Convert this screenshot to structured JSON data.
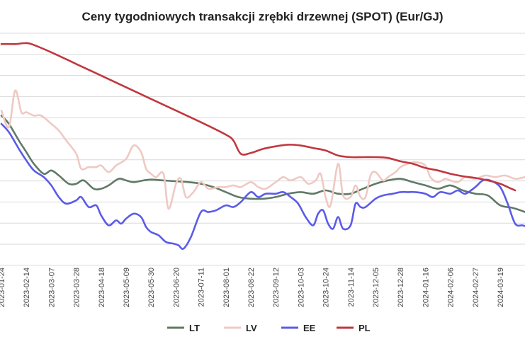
{
  "chart_data": {
    "type": "line",
    "title": "Ceny tygodniowych transakcji zrębki drzewnej (SPOT) (Eur/GJ)",
    "xlabel": "",
    "ylabel": "",
    "grid": true,
    "legend_position": "bottom",
    "x_tick_labels": [
      "2023-01-24",
      "2023-02-14",
      "2023-03-07",
      "2023-03-28",
      "2023-04-18",
      "2023-05-09",
      "2023-05-30",
      "2023-06-20",
      "2023-07-11",
      "2023-08-01",
      "2023-08-22",
      "2023-09-12",
      "2023-10-03",
      "2023-10-24",
      "2023-11-14",
      "2023-12-05",
      "2023-12-28",
      "2024-01-16",
      "2024-02-06",
      "2024-02-27",
      "2024-03-19"
    ],
    "y_gridlines": 12,
    "series": [
      {
        "name": "LT",
        "color": "#5f7a66",
        "points": [
          [
            0,
            6.5
          ],
          [
            0.3,
            6.0
          ],
          [
            0.7,
            5.0
          ],
          [
            1.0,
            4.3
          ],
          [
            1.3,
            3.6
          ],
          [
            1.7,
            3.0
          ],
          [
            2.0,
            3.2
          ],
          [
            2.3,
            2.9
          ],
          [
            2.7,
            2.4
          ],
          [
            3.0,
            2.4
          ],
          [
            3.3,
            2.6
          ],
          [
            3.7,
            2.1
          ],
          [
            4.0,
            2.1
          ],
          [
            4.3,
            2.3
          ],
          [
            4.7,
            2.7
          ],
          [
            5.0,
            2.6
          ],
          [
            5.3,
            2.5
          ],
          [
            5.7,
            2.6
          ],
          [
            6.0,
            2.65
          ],
          [
            6.5,
            2.6
          ],
          [
            7.0,
            2.55
          ],
          [
            7.5,
            2.5
          ],
          [
            8.0,
            2.4
          ],
          [
            8.5,
            2.2
          ],
          [
            9.0,
            1.9
          ],
          [
            9.5,
            1.6
          ],
          [
            10.0,
            1.5
          ],
          [
            10.5,
            1.5
          ],
          [
            11.0,
            1.6
          ],
          [
            11.5,
            1.8
          ],
          [
            12.0,
            1.9
          ],
          [
            12.5,
            1.8
          ],
          [
            13.0,
            2.0
          ],
          [
            13.5,
            1.8
          ],
          [
            14.0,
            1.8
          ],
          [
            14.5,
            2.1
          ],
          [
            15.0,
            2.4
          ],
          [
            15.5,
            2.6
          ],
          [
            16.0,
            2.7
          ],
          [
            16.5,
            2.5
          ],
          [
            17.0,
            2.3
          ],
          [
            17.5,
            2.1
          ],
          [
            18.0,
            2.3
          ],
          [
            18.5,
            2.0
          ],
          [
            19.0,
            1.8
          ],
          [
            19.5,
            1.7
          ],
          [
            20.0,
            1.1
          ],
          [
            20.5,
            0.95
          ],
          [
            21.0,
            0.7
          ],
          [
            21.1,
            0.6
          ]
        ]
      },
      {
        "name": "LV",
        "color": "#efc9c3",
        "points": [
          [
            0,
            6.8
          ],
          [
            0.3,
            5.8
          ],
          [
            0.55,
            8.0
          ],
          [
            0.8,
            6.7
          ],
          [
            1.0,
            6.7
          ],
          [
            1.3,
            6.5
          ],
          [
            1.6,
            6.5
          ],
          [
            2.0,
            6.0
          ],
          [
            2.3,
            5.6
          ],
          [
            2.6,
            5.0
          ],
          [
            3.0,
            4.2
          ],
          [
            3.2,
            3.3
          ],
          [
            3.5,
            3.4
          ],
          [
            3.8,
            3.4
          ],
          [
            4.0,
            3.5
          ],
          [
            4.3,
            3.1
          ],
          [
            4.6,
            3.5
          ],
          [
            5.0,
            3.9
          ],
          [
            5.3,
            4.7
          ],
          [
            5.6,
            4.3
          ],
          [
            5.8,
            3.3
          ],
          [
            6.0,
            3.0
          ],
          [
            6.2,
            2.8
          ],
          [
            6.5,
            3.0
          ],
          [
            6.7,
            0.9
          ],
          [
            7.0,
            2.4
          ],
          [
            7.2,
            2.7
          ],
          [
            7.4,
            1.6
          ],
          [
            7.7,
            1.9
          ],
          [
            8.0,
            2.5
          ],
          [
            8.3,
            2.1
          ],
          [
            8.7,
            2.2
          ],
          [
            9.0,
            2.2
          ],
          [
            9.3,
            2.3
          ],
          [
            9.6,
            2.2
          ],
          [
            10.0,
            2.5
          ],
          [
            10.3,
            2.2
          ],
          [
            10.6,
            2.1
          ],
          [
            11.0,
            2.5
          ],
          [
            11.3,
            2.8
          ],
          [
            11.6,
            2.6
          ],
          [
            12.0,
            2.8
          ],
          [
            12.3,
            2.4
          ],
          [
            12.6,
            2.6
          ],
          [
            12.8,
            3.0
          ],
          [
            13.0,
            1.6
          ],
          [
            13.2,
            1.1
          ],
          [
            13.5,
            3.6
          ],
          [
            13.7,
            1.7
          ],
          [
            14.0,
            1.6
          ],
          [
            14.2,
            2.3
          ],
          [
            14.4,
            1.6
          ],
          [
            14.6,
            1.6
          ],
          [
            14.8,
            2.9
          ],
          [
            15.0,
            3.1
          ],
          [
            15.3,
            2.6
          ],
          [
            15.5,
            2.8
          ],
          [
            15.8,
            3.1
          ],
          [
            16.0,
            3.4
          ],
          [
            16.3,
            3.6
          ],
          [
            16.6,
            3.7
          ],
          [
            17.0,
            3.5
          ],
          [
            17.2,
            2.8
          ],
          [
            17.5,
            2.5
          ],
          [
            17.8,
            2.7
          ],
          [
            18.0,
            2.6
          ],
          [
            18.3,
            2.5
          ],
          [
            18.6,
            2.8
          ],
          [
            19.0,
            2.7
          ],
          [
            19.4,
            2.9
          ],
          [
            19.8,
            2.8
          ],
          [
            20.2,
            2.9
          ],
          [
            20.6,
            2.7
          ],
          [
            21.0,
            2.8
          ]
        ]
      },
      {
        "name": "EE",
        "color": "#5b5be8",
        "points": [
          [
            0,
            6.0
          ],
          [
            0.3,
            5.5
          ],
          [
            0.7,
            4.5
          ],
          [
            1.0,
            3.8
          ],
          [
            1.3,
            3.2
          ],
          [
            1.7,
            2.8
          ],
          [
            2.0,
            2.3
          ],
          [
            2.3,
            1.6
          ],
          [
            2.6,
            1.2
          ],
          [
            3.0,
            1.4
          ],
          [
            3.2,
            1.6
          ],
          [
            3.5,
            1.0
          ],
          [
            3.8,
            1.1
          ],
          [
            4.0,
            0.5
          ],
          [
            4.3,
            -0.1
          ],
          [
            4.6,
            0.2
          ],
          [
            4.8,
            0.0
          ],
          [
            5.0,
            0.3
          ],
          [
            5.3,
            0.6
          ],
          [
            5.6,
            0.4
          ],
          [
            5.8,
            -0.2
          ],
          [
            6.0,
            -0.5
          ],
          [
            6.3,
            -0.7
          ],
          [
            6.6,
            -1.1
          ],
          [
            6.9,
            -1.2
          ],
          [
            7.1,
            -1.3
          ],
          [
            7.3,
            -1.5
          ],
          [
            7.6,
            -0.8
          ],
          [
            8.0,
            0.7
          ],
          [
            8.3,
            0.7
          ],
          [
            8.6,
            0.8
          ],
          [
            9.0,
            1.1
          ],
          [
            9.3,
            1.0
          ],
          [
            9.6,
            1.3
          ],
          [
            10.0,
            1.9
          ],
          [
            10.3,
            1.6
          ],
          [
            10.6,
            1.8
          ],
          [
            11.0,
            1.8
          ],
          [
            11.3,
            1.9
          ],
          [
            11.6,
            1.6
          ],
          [
            11.9,
            1.2
          ],
          [
            12.2,
            0.4
          ],
          [
            12.5,
            -0.1
          ],
          [
            12.7,
            0.6
          ],
          [
            12.9,
            0.8
          ],
          [
            13.1,
            0.0
          ],
          [
            13.3,
            -0.3
          ],
          [
            13.5,
            0.4
          ],
          [
            13.7,
            -0.3
          ],
          [
            14.0,
            -0.1
          ],
          [
            14.2,
            1.2
          ],
          [
            14.4,
            1.0
          ],
          [
            14.6,
            1.0
          ],
          [
            15.0,
            1.5
          ],
          [
            15.3,
            1.7
          ],
          [
            15.7,
            1.8
          ],
          [
            16.0,
            1.9
          ],
          [
            16.3,
            1.9
          ],
          [
            16.6,
            1.9
          ],
          [
            17.0,
            1.8
          ],
          [
            17.3,
            1.6
          ],
          [
            17.6,
            1.9
          ],
          [
            18.0,
            1.8
          ],
          [
            18.3,
            2.0
          ],
          [
            18.6,
            1.8
          ],
          [
            19.0,
            2.2
          ],
          [
            19.3,
            2.6
          ],
          [
            19.6,
            2.6
          ],
          [
            20.0,
            2.2
          ],
          [
            20.3,
            1.2
          ],
          [
            20.6,
            0.0
          ],
          [
            20.9,
            -0.1
          ],
          [
            21.1,
            -0.2
          ]
        ]
      },
      {
        "name": "PL",
        "color": "#c1373f",
        "points": [
          [
            0,
            10.8
          ],
          [
            0.3,
            10.8
          ],
          [
            0.6,
            10.8
          ],
          [
            0.9,
            10.85
          ],
          [
            1.2,
            10.8
          ],
          [
            2.0,
            10.3
          ],
          [
            3.0,
            9.6
          ],
          [
            4.0,
            8.9
          ],
          [
            5.0,
            8.2
          ],
          [
            6.0,
            7.5
          ],
          [
            7.0,
            6.8
          ],
          [
            8.0,
            6.1
          ],
          [
            9.0,
            5.35
          ],
          [
            9.3,
            5.0
          ],
          [
            9.6,
            4.2
          ],
          [
            10.0,
            4.25
          ],
          [
            10.5,
            4.5
          ],
          [
            11.0,
            4.65
          ],
          [
            11.5,
            4.75
          ],
          [
            12.0,
            4.7
          ],
          [
            12.5,
            4.55
          ],
          [
            13.0,
            4.4
          ],
          [
            13.5,
            4.1
          ],
          [
            14.0,
            4.0
          ],
          [
            14.5,
            4.0
          ],
          [
            15.0,
            4.0
          ],
          [
            15.5,
            3.95
          ],
          [
            16.0,
            3.75
          ],
          [
            16.5,
            3.6
          ],
          [
            17.0,
            3.35
          ],
          [
            17.5,
            3.2
          ],
          [
            18.0,
            3.0
          ],
          [
            18.5,
            2.85
          ],
          [
            19.0,
            2.75
          ],
          [
            19.5,
            2.6
          ],
          [
            20.0,
            2.4
          ],
          [
            20.3,
            2.2
          ],
          [
            20.6,
            2.0
          ]
        ]
      }
    ]
  }
}
